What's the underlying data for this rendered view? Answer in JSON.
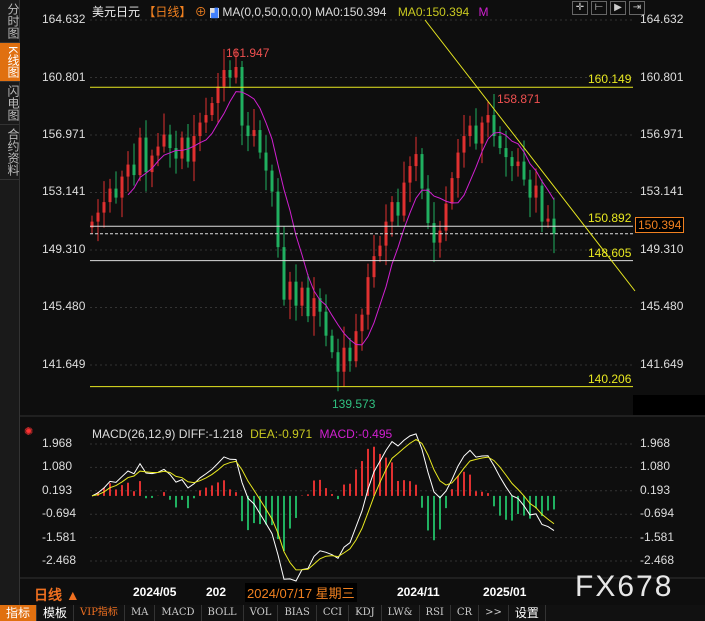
{
  "sidebar": {
    "tabs": [
      {
        "label": "分时图"
      },
      {
        "label": "K线图",
        "active": true
      },
      {
        "label": "闪电图"
      },
      {
        "label": "合约资料"
      }
    ]
  },
  "header": {
    "symbol": "美元日元",
    "period": "【日线】",
    "ma_params": "MA(0,0,50,0,0,0)",
    "ma0_white": "MA0:150.394",
    "ma0_yellow": "MA0:150.394",
    "m": "M"
  },
  "macd_header": {
    "params": "MACD(26,12,9)",
    "diff": "DIFF:-1.218",
    "dea": "DEA:-0.971",
    "macd": "MACD:-0.495"
  },
  "colors": {
    "up": "#e03030",
    "down": "#20b060",
    "ma": "#d020d0",
    "levels": "#ffff00",
    "accent": "#f08020"
  },
  "chart_data": {
    "type": "candlestick",
    "price_ticks": [
      "164.632",
      "160.801",
      "156.971",
      "153.141",
      "149.310",
      "145.480",
      "141.649"
    ],
    "ylim": [
      139.0,
      164.632
    ],
    "closes": [
      151.2,
      151.8,
      152.5,
      153.4,
      152.8,
      154.2,
      155.0,
      154.3,
      156.8,
      154.5,
      155.6,
      156.2,
      157.0,
      156.1,
      155.4,
      156.8,
      155.2,
      156.9,
      157.8,
      158.3,
      159.1,
      160.2,
      161.3,
      160.8,
      161.5,
      157.6,
      156.9,
      157.3,
      155.8,
      154.6,
      153.2,
      149.5,
      146.0,
      147.2,
      145.6,
      146.8,
      144.9,
      146.1,
      145.2,
      143.6,
      142.5,
      141.2,
      142.8,
      141.9,
      143.9,
      145.0,
      147.5,
      148.9,
      149.6,
      151.2,
      152.5,
      151.6,
      153.8,
      154.9,
      155.7,
      153.4,
      151.1,
      149.8,
      150.6,
      152.4,
      154.1,
      155.8,
      156.9,
      157.6,
      156.4,
      157.8,
      158.3,
      156.9,
      156.1,
      155.5,
      154.9,
      155.2,
      154.0,
      152.8,
      153.6,
      151.2,
      151.4,
      150.4
    ],
    "annotations": {
      "high": "161.947",
      "high2": "158.871",
      "low": "139.573"
    },
    "levels": [
      {
        "value": 160.149,
        "label": "160.149"
      },
      {
        "value": 150.892,
        "label": "150.892"
      },
      {
        "value": 148.605,
        "label": "148.605"
      },
      {
        "value": 140.206,
        "label": "140.206"
      }
    ],
    "last_price": {
      "value": 150.394,
      "label": "150.394"
    },
    "trendline": [
      [
        164.632,
        "start"
      ],
      [
        146.2,
        "end"
      ]
    ],
    "macd_ticks": [
      "1.968",
      "1.080",
      "0.193",
      "-0.694",
      "-1.581",
      "-2.468"
    ],
    "x_ticks": [
      "2024/05",
      "202",
      "2024/11",
      "2025/01"
    ],
    "crosshair_date": "2024/07/17 星期三"
  },
  "bottom": {
    "period": "日线 ▲",
    "watermark": "FX678"
  },
  "toolbar": [
    "指标",
    "模板",
    "VIP指标",
    "MA",
    "MACD",
    "BOLL",
    "VOL",
    "BIAS",
    "CCI",
    "KDJ",
    "LW&",
    "RSI",
    "CR",
    ">>",
    "设置"
  ]
}
